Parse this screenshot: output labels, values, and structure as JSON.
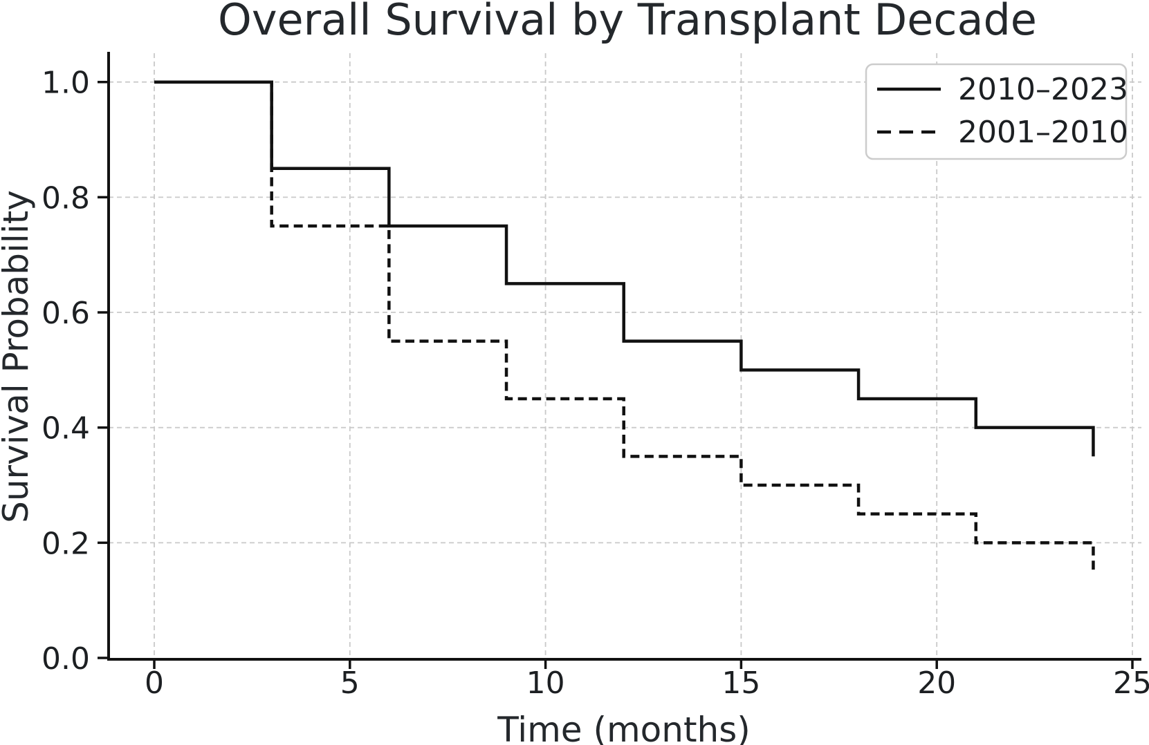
{
  "colors": {
    "background": "#ffffff",
    "line": "#111111",
    "grid": "#c9c9c9",
    "axis": "#111111",
    "text": "#24282c",
    "legend_border": "#cccccc",
    "legend_fill": "#ffffff"
  },
  "chart_data": {
    "type": "line",
    "subtype": "kaplan-meier-step",
    "title": "Overall Survival by Transplant Decade",
    "xlabel": "Time (months)",
    "ylabel": "Survival Probability",
    "xlim": [
      -1.2,
      25.2
    ],
    "ylim": [
      0.0,
      1.05
    ],
    "x_ticks": [
      0,
      5,
      10,
      15,
      20,
      25
    ],
    "x_tick_labels": [
      "0",
      "5",
      "10",
      "15",
      "20",
      "25"
    ],
    "y_ticks": [
      0.0,
      0.2,
      0.4,
      0.6,
      0.8,
      1.0
    ],
    "y_tick_labels": [
      "0.0",
      "0.2",
      "0.4",
      "0.6",
      "0.8",
      "1.0"
    ],
    "grid": true,
    "grid_style": "dashed",
    "legend_position": "upper right",
    "step_note": "y[i] is survival probability on interval [x[i], x[i+1]); final value is level after last drop at x=24",
    "series": [
      {
        "name": "2010–2023",
        "line_style": "solid",
        "color": "#111111",
        "x": [
          0,
          3,
          6,
          9,
          12,
          15,
          18,
          21,
          24
        ],
        "y": [
          1.0,
          0.85,
          0.75,
          0.65,
          0.55,
          0.5,
          0.45,
          0.4,
          0.35
        ]
      },
      {
        "name": "2001–2010",
        "line_style": "dashed",
        "color": "#111111",
        "x": [
          0,
          3,
          6,
          9,
          12,
          15,
          18,
          21,
          24
        ],
        "y": [
          1.0,
          0.75,
          0.55,
          0.45,
          0.35,
          0.3,
          0.25,
          0.2,
          0.15
        ]
      }
    ]
  }
}
